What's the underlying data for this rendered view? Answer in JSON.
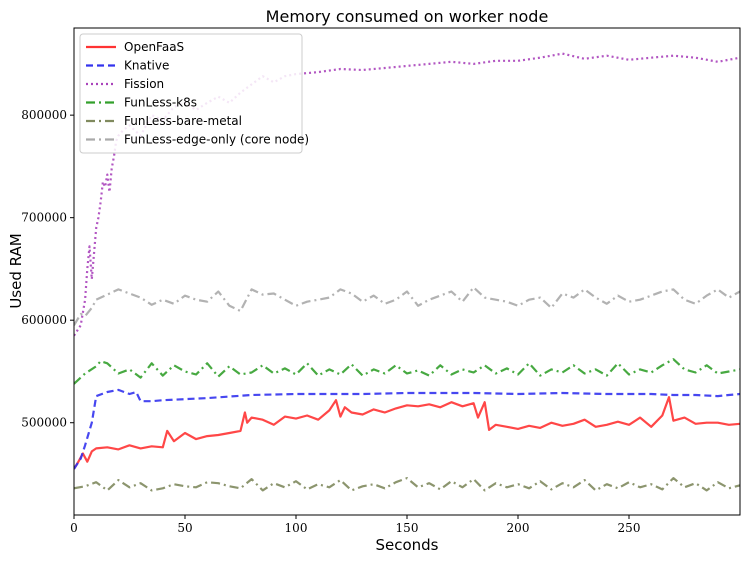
{
  "chart_data": {
    "type": "line",
    "title": "Memory consumed on worker node",
    "xlabel": "Seconds",
    "ylabel": "Used RAM",
    "xlim": [
      0,
      300
    ],
    "ylim": [
      410000,
      885000
    ],
    "xticks": [
      0,
      50,
      100,
      150,
      200,
      250
    ],
    "yticks": [
      500000,
      600000,
      700000,
      800000
    ],
    "xtick_labels": [
      "0",
      "50",
      "100",
      "150",
      "200",
      "250"
    ],
    "ytick_labels": [
      "500000",
      "600000",
      "700000",
      "800000"
    ],
    "grid": false,
    "legend_position": "top-left",
    "series": [
      {
        "name": "OpenFaaS",
        "color": "#ff3333",
        "style": "solid",
        "x": [
          0,
          2,
          4,
          6,
          8,
          10,
          15,
          20,
          25,
          30,
          35,
          40,
          42,
          45,
          50,
          55,
          60,
          65,
          70,
          75,
          77,
          78,
          80,
          85,
          90,
          95,
          100,
          105,
          110,
          115,
          118,
          120,
          122,
          125,
          130,
          135,
          140,
          145,
          150,
          155,
          160,
          165,
          170,
          175,
          180,
          182,
          185,
          187,
          190,
          195,
          200,
          205,
          210,
          215,
          220,
          225,
          230,
          235,
          240,
          245,
          250,
          255,
          260,
          265,
          268,
          270,
          275,
          280,
          285,
          290,
          295,
          300
        ],
        "y": [
          455000,
          462000,
          470000,
          462000,
          472000,
          475000,
          476000,
          474000,
          478000,
          475000,
          477000,
          476000,
          492000,
          482000,
          490000,
          484000,
          487000,
          488000,
          490000,
          492000,
          510000,
          500000,
          505000,
          503000,
          498000,
          506000,
          504000,
          507000,
          503000,
          512000,
          522000,
          506000,
          515000,
          510000,
          508000,
          513000,
          510000,
          514000,
          517000,
          516000,
          518000,
          515000,
          520000,
          516000,
          519000,
          505000,
          520000,
          493000,
          498000,
          496000,
          494000,
          497000,
          495000,
          500000,
          497000,
          499000,
          503000,
          496000,
          498000,
          501000,
          498000,
          505000,
          496000,
          507000,
          525000,
          502000,
          505000,
          499000,
          500000,
          500000,
          498000,
          499000
        ]
      },
      {
        "name": "Knative",
        "color": "#3333ee",
        "style": "dashed",
        "x": [
          0,
          3,
          5,
          8,
          10,
          15,
          20,
          25,
          28,
          30,
          35,
          40,
          60,
          80,
          100,
          110,
          130,
          150,
          170,
          180,
          200,
          220,
          240,
          260,
          270,
          280,
          290,
          295,
          300
        ],
        "y": [
          455000,
          465000,
          478000,
          500000,
          526000,
          530000,
          532000,
          528000,
          530000,
          521000,
          521000,
          522000,
          524000,
          527000,
          528000,
          528000,
          528000,
          529000,
          529000,
          529000,
          528000,
          529000,
          528000,
          528000,
          527000,
          527000,
          526000,
          527000,
          528000
        ]
      },
      {
        "name": "Fission",
        "color": "#aa44bb",
        "style": "dotted",
        "x": [
          0,
          3,
          5,
          6,
          7,
          8,
          9,
          10,
          11,
          12,
          13,
          14,
          15,
          16,
          17,
          18,
          19,
          20,
          22,
          25,
          30,
          35,
          40,
          45,
          50,
          55,
          60,
          65,
          70,
          75,
          80,
          85,
          90,
          95,
          100,
          110,
          120,
          130,
          140,
          150,
          160,
          170,
          180,
          190,
          200,
          210,
          220,
          230,
          240,
          250,
          260,
          270,
          280,
          290,
          300
        ],
        "y": [
          585000,
          595000,
          620000,
          650000,
          672000,
          640000,
          665000,
          690000,
          700000,
          715000,
          735000,
          730000,
          742000,
          725000,
          748000,
          760000,
          775000,
          780000,
          785000,
          790000,
          780000,
          800000,
          795000,
          808000,
          812000,
          805000,
          812000,
          818000,
          812000,
          822000,
          830000,
          838000,
          832000,
          838000,
          840000,
          842000,
          845000,
          844000,
          846000,
          848000,
          850000,
          852000,
          850000,
          853000,
          853000,
          856000,
          860000,
          855000,
          858000,
          854000,
          856000,
          858000,
          856000,
          852000,
          856000
        ]
      },
      {
        "name": "FunLess-k8s",
        "color": "#33a02c",
        "style": "dashdot",
        "x": [
          0,
          5,
          10,
          12,
          15,
          20,
          25,
          30,
          35,
          40,
          45,
          50,
          55,
          60,
          65,
          70,
          75,
          80,
          85,
          90,
          95,
          100,
          105,
          110,
          115,
          120,
          125,
          130,
          135,
          140,
          145,
          150,
          155,
          160,
          165,
          170,
          175,
          180,
          185,
          190,
          195,
          200,
          205,
          210,
          215,
          220,
          225,
          230,
          235,
          240,
          245,
          250,
          255,
          260,
          265,
          270,
          275,
          280,
          285,
          290,
          295,
          300
        ],
        "y": [
          538000,
          548000,
          555000,
          560000,
          558000,
          548000,
          552000,
          544000,
          558000,
          546000,
          556000,
          550000,
          547000,
          558000,
          545000,
          555000,
          547000,
          549000,
          556000,
          548000,
          553000,
          547000,
          558000,
          546000,
          552000,
          547000,
          557000,
          546000,
          552000,
          548000,
          556000,
          548000,
          551000,
          546000,
          556000,
          547000,
          552000,
          549000,
          556000,
          548000,
          553000,
          547000,
          558000,
          546000,
          552000,
          549000,
          556000,
          548000,
          552000,
          546000,
          558000,
          547000,
          552000,
          549000,
          556000,
          562000,
          552000,
          549000,
          556000,
          548000,
          550000,
          552000
        ]
      },
      {
        "name": "FunLess-bare-metal",
        "color": "#808a5e",
        "style": "dashdot",
        "x": [
          0,
          5,
          10,
          15,
          20,
          25,
          30,
          35,
          40,
          45,
          50,
          55,
          60,
          65,
          70,
          75,
          80,
          85,
          90,
          95,
          100,
          105,
          110,
          115,
          120,
          125,
          130,
          135,
          140,
          145,
          150,
          155,
          160,
          165,
          170,
          175,
          180,
          185,
          190,
          195,
          200,
          205,
          210,
          215,
          220,
          225,
          230,
          235,
          240,
          245,
          250,
          255,
          260,
          265,
          270,
          275,
          280,
          285,
          290,
          295,
          300
        ],
        "y": [
          436000,
          438000,
          442000,
          434000,
          444000,
          437000,
          441000,
          434000,
          436000,
          440000,
          438000,
          437000,
          442000,
          441000,
          438000,
          436000,
          445000,
          434000,
          441000,
          437000,
          443000,
          435000,
          440000,
          437000,
          444000,
          434000,
          438000,
          440000,
          436000,
          442000,
          446000,
          437000,
          441000,
          435000,
          443000,
          437000,
          445000,
          434000,
          441000,
          437000,
          440000,
          436000,
          443000,
          435000,
          441000,
          437000,
          444000,
          434000,
          440000,
          436000,
          442000,
          437000,
          440000,
          435000,
          446000,
          437000,
          441000,
          434000,
          442000,
          436000,
          439000
        ]
      },
      {
        "name": "FunLess-edge-only (core node)",
        "color": "#aaaaaa",
        "style": "dashdot",
        "x": [
          0,
          3,
          5,
          8,
          10,
          15,
          20,
          25,
          30,
          35,
          40,
          45,
          50,
          55,
          60,
          65,
          70,
          75,
          80,
          85,
          90,
          95,
          100,
          105,
          110,
          115,
          120,
          125,
          130,
          135,
          140,
          145,
          150,
          155,
          160,
          165,
          170,
          175,
          180,
          185,
          190,
          195,
          200,
          205,
          210,
          215,
          220,
          225,
          230,
          235,
          240,
          245,
          250,
          255,
          260,
          265,
          270,
          275,
          280,
          285,
          290,
          295,
          300
        ],
        "y": [
          595000,
          606000,
          604000,
          612000,
          620000,
          625000,
          630000,
          626000,
          622000,
          615000,
          620000,
          616000,
          624000,
          620000,
          618000,
          628000,
          614000,
          609000,
          630000,
          625000,
          626000,
          620000,
          614000,
          618000,
          620000,
          622000,
          630000,
          626000,
          618000,
          624000,
          616000,
          620000,
          628000,
          614000,
          620000,
          624000,
          628000,
          618000,
          632000,
          622000,
          620000,
          618000,
          614000,
          620000,
          622000,
          612000,
          626000,
          622000,
          630000,
          622000,
          616000,
          624000,
          618000,
          620000,
          624000,
          628000,
          630000,
          620000,
          616000,
          624000,
          630000,
          622000,
          628000
        ]
      }
    ]
  }
}
